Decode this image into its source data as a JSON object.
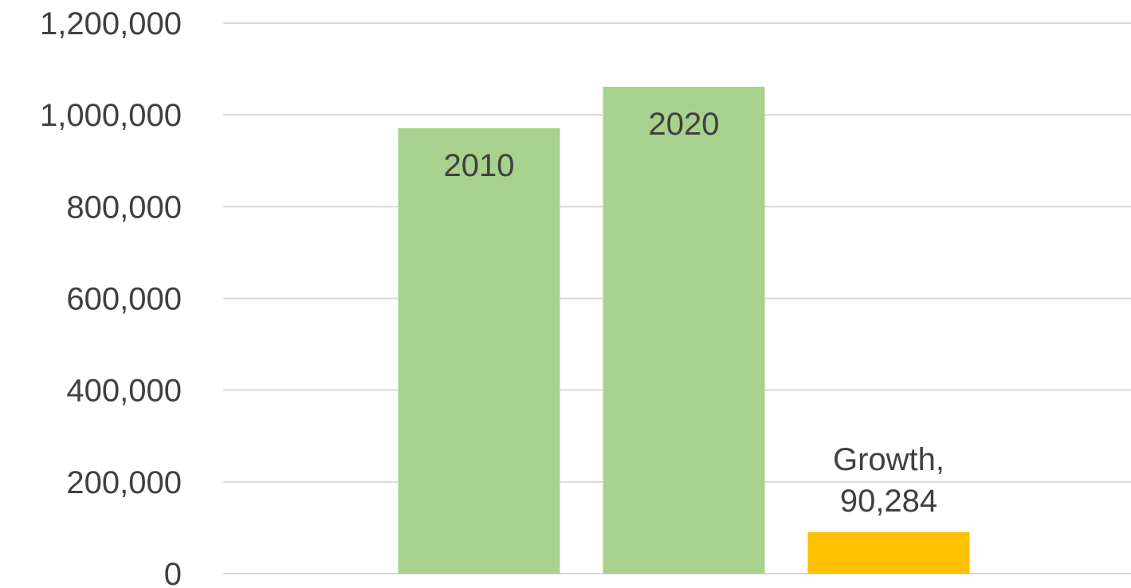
{
  "chart_data": {
    "type": "bar",
    "title": "",
    "xlabel": "",
    "ylabel": "",
    "ylim": [
      0,
      1200000
    ],
    "yticks": [
      0,
      200000,
      400000,
      600000,
      800000,
      1000000,
      1200000
    ],
    "ytick_labels": [
      "0",
      "200,000",
      "400,000",
      "600,000",
      "800,000",
      "1,000,000",
      "1,200,000"
    ],
    "grid": true,
    "legend": "none",
    "bars": [
      {
        "label_lines": [
          "2010"
        ],
        "value": 971000,
        "color": "#a9d18e",
        "label_position": "inside-top"
      },
      {
        "label_lines": [
          "2020"
        ],
        "value": 1061284,
        "color": "#a9d18e",
        "label_position": "inside-top"
      },
      {
        "label_lines": [
          "Growth,",
          "90,284"
        ],
        "value": 90284,
        "color": "#ffc000",
        "label_position": "above"
      }
    ]
  }
}
